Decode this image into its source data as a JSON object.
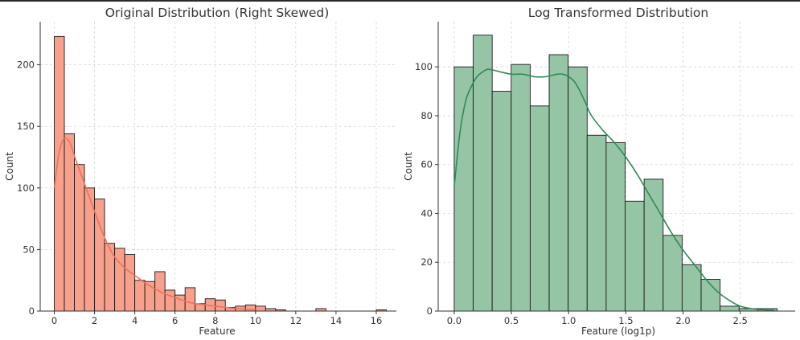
{
  "chart_data": [
    {
      "type": "bar",
      "subtype": "histogram-with-kde",
      "title": "Original Distribution (Right Skewed)",
      "xlabel": "Feature",
      "ylabel": "Count",
      "xlim": [
        -0.7,
        17
      ],
      "ylim": [
        0,
        235
      ],
      "xticks": [
        0,
        2,
        4,
        6,
        8,
        10,
        12,
        14,
        16
      ],
      "yticks": [
        0,
        50,
        100,
        150,
        200
      ],
      "grid": true,
      "bar_color": "#f8a08c",
      "line_color": "#e8745a",
      "bin_width": 0.5,
      "bins": [
        {
          "x0": 0.0,
          "count": 223
        },
        {
          "x0": 0.5,
          "count": 144
        },
        {
          "x0": 1.0,
          "count": 119
        },
        {
          "x0": 1.5,
          "count": 100
        },
        {
          "x0": 2.0,
          "count": 91
        },
        {
          "x0": 2.5,
          "count": 55
        },
        {
          "x0": 3.0,
          "count": 51
        },
        {
          "x0": 3.5,
          "count": 46
        },
        {
          "x0": 4.0,
          "count": 25
        },
        {
          "x0": 4.5,
          "count": 24
        },
        {
          "x0": 5.0,
          "count": 32
        },
        {
          "x0": 5.5,
          "count": 17
        },
        {
          "x0": 6.0,
          "count": 13
        },
        {
          "x0": 6.5,
          "count": 19
        },
        {
          "x0": 7.0,
          "count": 6
        },
        {
          "x0": 7.5,
          "count": 10
        },
        {
          "x0": 8.0,
          "count": 9
        },
        {
          "x0": 8.5,
          "count": 3
        },
        {
          "x0": 9.0,
          "count": 4
        },
        {
          "x0": 9.5,
          "count": 5
        },
        {
          "x0": 10.0,
          "count": 4
        },
        {
          "x0": 10.5,
          "count": 2
        },
        {
          "x0": 11.0,
          "count": 1
        },
        {
          "x0": 11.5,
          "count": 0
        },
        {
          "x0": 12.0,
          "count": 0
        },
        {
          "x0": 12.5,
          "count": 0
        },
        {
          "x0": 13.0,
          "count": 2
        },
        {
          "x0": 13.5,
          "count": 0
        },
        {
          "x0": 14.0,
          "count": 0
        },
        {
          "x0": 14.5,
          "count": 0
        },
        {
          "x0": 15.0,
          "count": 0
        },
        {
          "x0": 15.5,
          "count": 0
        },
        {
          "x0": 16.0,
          "count": 1
        }
      ],
      "kde": [
        [
          0.0,
          100
        ],
        [
          0.2,
          125
        ],
        [
          0.4,
          138
        ],
        [
          0.6,
          140
        ],
        [
          0.8,
          136
        ],
        [
          1.0,
          126
        ],
        [
          1.4,
          108
        ],
        [
          1.8,
          90
        ],
        [
          2.2,
          72
        ],
        [
          2.6,
          56
        ],
        [
          3.0,
          44
        ],
        [
          3.5,
          35
        ],
        [
          4.0,
          29
        ],
        [
          4.5,
          23
        ],
        [
          5.0,
          18
        ],
        [
          5.5,
          14
        ],
        [
          6.0,
          11
        ],
        [
          6.5,
          8
        ],
        [
          7.0,
          6
        ],
        [
          7.5,
          5
        ],
        [
          8.0,
          4
        ],
        [
          8.5,
          3
        ],
        [
          9.0,
          2.2
        ],
        [
          10.0,
          1
        ]
      ]
    },
    {
      "type": "bar",
      "subtype": "histogram-with-kde",
      "title": "Log Transformed Distribution",
      "xlabel": "Feature (log1p)",
      "ylabel": "Count",
      "xlim": [
        -0.14,
        2.98
      ],
      "ylim": [
        0,
        118.5
      ],
      "xticks": [
        0.0,
        0.5,
        1.0,
        1.5,
        2.0,
        2.5
      ],
      "xtick_labels": [
        "0.0",
        "0.5",
        "1.0",
        "1.5",
        "2.0",
        "2.5"
      ],
      "yticks": [
        0,
        20,
        40,
        60,
        80,
        100
      ],
      "grid": true,
      "bar_color": "#96c5a5",
      "line_color": "#2e8b57",
      "bin_width": 0.166,
      "bins": [
        {
          "x0": 0.0,
          "count": 100
        },
        {
          "x0": 0.166,
          "count": 113
        },
        {
          "x0": 0.332,
          "count": 90
        },
        {
          "x0": 0.498,
          "count": 101
        },
        {
          "x0": 0.664,
          "count": 84
        },
        {
          "x0": 0.83,
          "count": 105
        },
        {
          "x0": 0.996,
          "count": 100
        },
        {
          "x0": 1.162,
          "count": 72
        },
        {
          "x0": 1.328,
          "count": 69
        },
        {
          "x0": 1.494,
          "count": 45
        },
        {
          "x0": 1.66,
          "count": 54
        },
        {
          "x0": 1.826,
          "count": 31
        },
        {
          "x0": 1.992,
          "count": 19
        },
        {
          "x0": 2.158,
          "count": 13
        },
        {
          "x0": 2.324,
          "count": 2
        },
        {
          "x0": 2.49,
          "count": 1
        },
        {
          "x0": 2.656,
          "count": 1
        }
      ],
      "kde": [
        [
          0.0,
          51
        ],
        [
          0.05,
          73
        ],
        [
          0.1,
          86
        ],
        [
          0.15,
          92
        ],
        [
          0.2,
          96
        ],
        [
          0.25,
          98
        ],
        [
          0.3,
          99
        ],
        [
          0.4,
          98
        ],
        [
          0.5,
          97
        ],
        [
          0.6,
          97
        ],
        [
          0.7,
          96
        ],
        [
          0.8,
          96
        ],
        [
          0.9,
          97
        ],
        [
          0.95,
          97
        ],
        [
          1.0,
          96
        ],
        [
          1.05,
          94
        ],
        [
          1.1,
          90
        ],
        [
          1.15,
          85
        ],
        [
          1.2,
          80
        ],
        [
          1.3,
          74
        ],
        [
          1.4,
          69
        ],
        [
          1.5,
          63
        ],
        [
          1.6,
          56
        ],
        [
          1.7,
          48
        ],
        [
          1.8,
          40
        ],
        [
          1.9,
          32
        ],
        [
          2.0,
          25
        ],
        [
          2.1,
          19
        ],
        [
          2.2,
          13
        ],
        [
          2.3,
          8
        ],
        [
          2.4,
          4.5
        ],
        [
          2.5,
          2
        ],
        [
          2.6,
          1
        ],
        [
          2.7,
          0.5
        ],
        [
          2.8,
          0.3
        ]
      ]
    }
  ]
}
